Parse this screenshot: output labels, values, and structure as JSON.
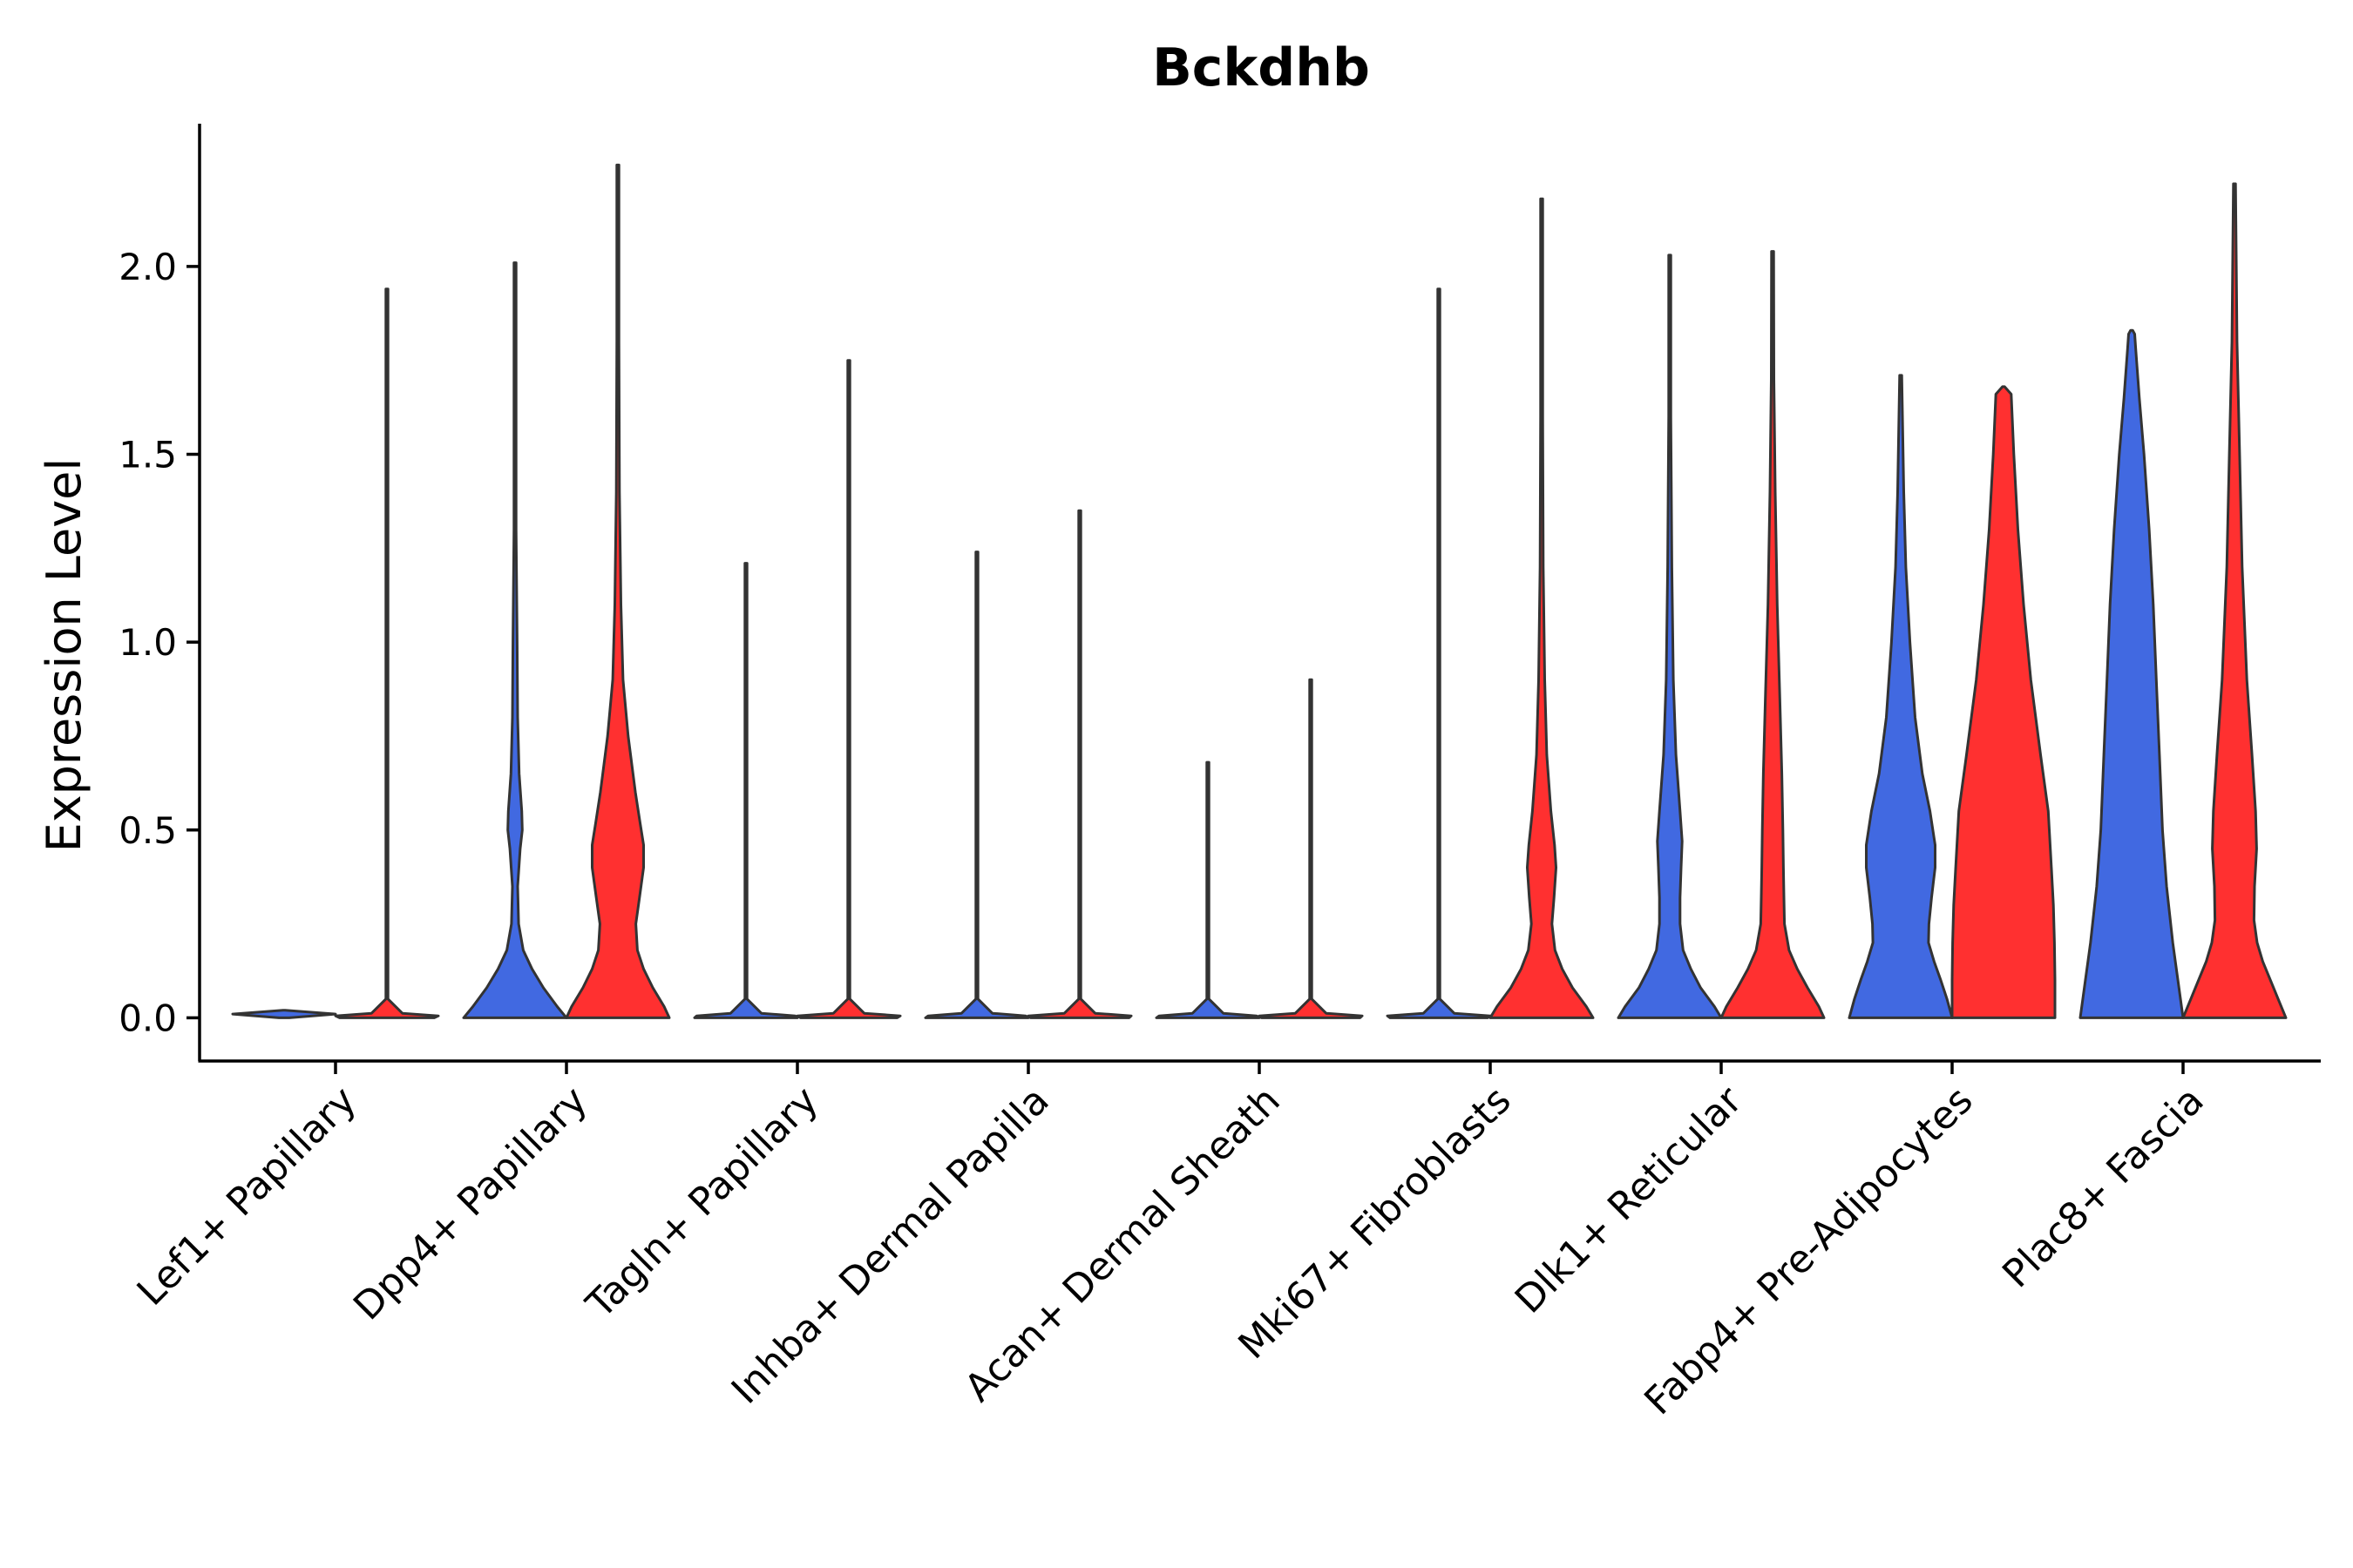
{
  "chart_data": {
    "type": "violin",
    "title": "Bckdhb",
    "ylabel": "Expression Level",
    "xlabel": "",
    "ylim": [
      -0.115,
      2.38
    ],
    "yticks": [
      "0.0",
      "0.5",
      "1.0",
      "1.5",
      "2.0"
    ],
    "ytick_values": [
      0.0,
      0.5,
      1.0,
      1.5,
      2.0
    ],
    "grid": false,
    "legend": "none",
    "colors": {
      "group_a": "#4169e1",
      "group_b": "#ff3030",
      "outline": "#333333"
    },
    "categories": [
      "Lef1+ Papillary",
      "Dpp4+ Papillary",
      "Tagln+ Papillary",
      "Inhba+ Dermal Papilla",
      "Acan+ Dermal Sheath",
      "Mki67+ Fibroblasts",
      "Dlk1+ Reticular",
      "Fabp4+ Pre-Adipocytes",
      "Plac8+ Fascia"
    ],
    "violins": [
      {
        "category": 0,
        "group": "a",
        "color": "#4169e1",
        "max": 0.0,
        "profile": [
          [
            0,
            0.1
          ],
          [
            0.01,
            1
          ],
          [
            0.02,
            0
          ]
        ]
      },
      {
        "category": 0,
        "group": "b",
        "color": "#ff3030",
        "max": 1.94,
        "profile": [
          [
            0,
            0.92
          ],
          [
            0.005,
            1
          ],
          [
            0.012,
            0.3
          ],
          [
            0.05,
            0.01
          ],
          [
            1.94,
            0.008
          ]
        ]
      },
      {
        "category": 1,
        "group": "a",
        "color": "#4169e1",
        "max": 2.01,
        "profile": [
          [
            0,
            1
          ],
          [
            0.03,
            0.82
          ],
          [
            0.08,
            0.55
          ],
          [
            0.13,
            0.33
          ],
          [
            0.18,
            0.16
          ],
          [
            0.25,
            0.07
          ],
          [
            0.35,
            0.05
          ],
          [
            0.45,
            0.1
          ],
          [
            0.5,
            0.14
          ],
          [
            0.55,
            0.13
          ],
          [
            0.65,
            0.08
          ],
          [
            0.8,
            0.05
          ],
          [
            1.0,
            0.04
          ],
          [
            1.3,
            0.02
          ],
          [
            1.6,
            0.012
          ],
          [
            2.01,
            0.008
          ]
        ]
      },
      {
        "category": 1,
        "group": "b",
        "color": "#ff3030",
        "max": 2.27,
        "profile": [
          [
            0,
            1
          ],
          [
            0.03,
            0.9
          ],
          [
            0.08,
            0.68
          ],
          [
            0.13,
            0.5
          ],
          [
            0.18,
            0.38
          ],
          [
            0.25,
            0.35
          ],
          [
            0.32,
            0.42
          ],
          [
            0.4,
            0.5
          ],
          [
            0.46,
            0.5
          ],
          [
            0.52,
            0.43
          ],
          [
            0.6,
            0.34
          ],
          [
            0.75,
            0.2
          ],
          [
            0.9,
            0.1
          ],
          [
            1.1,
            0.06
          ],
          [
            1.4,
            0.03
          ],
          [
            1.8,
            0.015
          ],
          [
            2.27,
            0.008
          ]
        ]
      },
      {
        "category": 2,
        "group": "a",
        "color": "#4169e1",
        "max": 1.21,
        "profile": [
          [
            0,
            1
          ],
          [
            0.005,
            0.96
          ],
          [
            0.012,
            0.3
          ],
          [
            0.05,
            0.02
          ],
          [
            1.21,
            0.008
          ]
        ]
      },
      {
        "category": 2,
        "group": "b",
        "color": "#ff3030",
        "max": 1.75,
        "profile": [
          [
            0,
            0.94
          ],
          [
            0.005,
            1
          ],
          [
            0.012,
            0.3
          ],
          [
            0.05,
            0.02
          ],
          [
            1.75,
            0.008
          ]
        ]
      },
      {
        "category": 3,
        "group": "a",
        "color": "#4169e1",
        "max": 1.24,
        "profile": [
          [
            0,
            1
          ],
          [
            0.005,
            0.95
          ],
          [
            0.012,
            0.3
          ],
          [
            0.05,
            0.02
          ],
          [
            1.24,
            0.008
          ]
        ]
      },
      {
        "category": 3,
        "group": "b",
        "color": "#ff3030",
        "max": 1.35,
        "profile": [
          [
            0,
            0.96
          ],
          [
            0.005,
            1
          ],
          [
            0.012,
            0.3
          ],
          [
            0.05,
            0.02
          ],
          [
            1.35,
            0.008
          ]
        ]
      },
      {
        "category": 4,
        "group": "a",
        "color": "#4169e1",
        "max": 0.68,
        "profile": [
          [
            0,
            1
          ],
          [
            0.005,
            0.95
          ],
          [
            0.012,
            0.3
          ],
          [
            0.05,
            0.02
          ],
          [
            0.68,
            0.008
          ]
        ]
      },
      {
        "category": 4,
        "group": "b",
        "color": "#ff3030",
        "max": 0.9,
        "profile": [
          [
            0,
            0.96
          ],
          [
            0.005,
            1
          ],
          [
            0.012,
            0.3
          ],
          [
            0.05,
            0.02
          ],
          [
            0.9,
            0.008
          ]
        ]
      },
      {
        "category": 5,
        "group": "a",
        "color": "#4169e1",
        "max": 1.94,
        "profile": [
          [
            0,
            0.95
          ],
          [
            0.005,
            1
          ],
          [
            0.012,
            0.3
          ],
          [
            0.05,
            0.02
          ],
          [
            1.94,
            0.008
          ]
        ]
      },
      {
        "category": 5,
        "group": "b",
        "color": "#ff3030",
        "max": 2.18,
        "profile": [
          [
            0,
            1
          ],
          [
            0.03,
            0.87
          ],
          [
            0.08,
            0.6
          ],
          [
            0.13,
            0.4
          ],
          [
            0.18,
            0.26
          ],
          [
            0.25,
            0.2
          ],
          [
            0.32,
            0.24
          ],
          [
            0.4,
            0.28
          ],
          [
            0.46,
            0.25
          ],
          [
            0.55,
            0.18
          ],
          [
            0.7,
            0.1
          ],
          [
            0.9,
            0.06
          ],
          [
            1.2,
            0.03
          ],
          [
            1.6,
            0.015
          ],
          [
            2.18,
            0.008
          ]
        ]
      },
      {
        "category": 6,
        "group": "a",
        "color": "#4169e1",
        "max": 2.03,
        "profile": [
          [
            0,
            1
          ],
          [
            0.03,
            0.87
          ],
          [
            0.08,
            0.6
          ],
          [
            0.13,
            0.41
          ],
          [
            0.18,
            0.26
          ],
          [
            0.25,
            0.2
          ],
          [
            0.32,
            0.2
          ],
          [
            0.4,
            0.22
          ],
          [
            0.47,
            0.24
          ],
          [
            0.55,
            0.2
          ],
          [
            0.7,
            0.12
          ],
          [
            0.9,
            0.07
          ],
          [
            1.2,
            0.04
          ],
          [
            1.6,
            0.015
          ],
          [
            2.03,
            0.008
          ]
        ]
      },
      {
        "category": 6,
        "group": "b",
        "color": "#ff3030",
        "max": 2.04,
        "profile": [
          [
            0,
            1
          ],
          [
            0.03,
            0.9
          ],
          [
            0.08,
            0.68
          ],
          [
            0.13,
            0.48
          ],
          [
            0.18,
            0.32
          ],
          [
            0.25,
            0.23
          ],
          [
            0.32,
            0.22
          ],
          [
            0.4,
            0.21
          ],
          [
            0.5,
            0.2
          ],
          [
            0.65,
            0.18
          ],
          [
            0.85,
            0.14
          ],
          [
            1.1,
            0.09
          ],
          [
            1.4,
            0.05
          ],
          [
            1.7,
            0.025
          ],
          [
            2.04,
            0.008
          ]
        ]
      },
      {
        "category": 7,
        "group": "a",
        "color": "#4169e1",
        "max": 1.71,
        "profile": [
          [
            0,
            1
          ],
          [
            0.05,
            0.9
          ],
          [
            0.1,
            0.78
          ],
          [
            0.15,
            0.65
          ],
          [
            0.2,
            0.54
          ],
          [
            0.25,
            0.55
          ],
          [
            0.32,
            0.6
          ],
          [
            0.4,
            0.67
          ],
          [
            0.46,
            0.67
          ],
          [
            0.55,
            0.57
          ],
          [
            0.65,
            0.42
          ],
          [
            0.8,
            0.28
          ],
          [
            1.0,
            0.18
          ],
          [
            1.2,
            0.1
          ],
          [
            1.4,
            0.06
          ],
          [
            1.71,
            0.008
          ]
        ]
      },
      {
        "category": 7,
        "group": "b",
        "color": "#ff3030",
        "max": 1.68,
        "profile": [
          [
            0,
            1
          ],
          [
            0.1,
            1.0
          ],
          [
            0.2,
            0.99
          ],
          [
            0.3,
            0.97
          ],
          [
            0.4,
            0.93
          ],
          [
            0.55,
            0.87
          ],
          [
            0.7,
            0.72
          ],
          [
            0.9,
            0.53
          ],
          [
            1.1,
            0.39
          ],
          [
            1.3,
            0.28
          ],
          [
            1.5,
            0.2
          ],
          [
            1.66,
            0.15
          ],
          [
            1.68,
            0.0
          ]
        ]
      },
      {
        "category": 8,
        "group": "a",
        "color": "#4169e1",
        "max": 1.83,
        "profile": [
          [
            0,
            1
          ],
          [
            0.1,
            0.9
          ],
          [
            0.2,
            0.8
          ],
          [
            0.35,
            0.68
          ],
          [
            0.5,
            0.6
          ],
          [
            0.7,
            0.54
          ],
          [
            0.9,
            0.48
          ],
          [
            1.1,
            0.42
          ],
          [
            1.3,
            0.34
          ],
          [
            1.5,
            0.24
          ],
          [
            1.65,
            0.15
          ],
          [
            1.78,
            0.08
          ],
          [
            1.82,
            0.06
          ],
          [
            1.83,
            0.0
          ]
        ]
      },
      {
        "category": 8,
        "group": "b",
        "color": "#ff3030",
        "max": 2.22,
        "profile": [
          [
            0,
            1
          ],
          [
            0.04,
            0.88
          ],
          [
            0.1,
            0.7
          ],
          [
            0.15,
            0.55
          ],
          [
            0.2,
            0.44
          ],
          [
            0.26,
            0.38
          ],
          [
            0.35,
            0.39
          ],
          [
            0.45,
            0.43
          ],
          [
            0.55,
            0.41
          ],
          [
            0.7,
            0.34
          ],
          [
            0.9,
            0.24
          ],
          [
            1.2,
            0.15
          ],
          [
            1.5,
            0.1
          ],
          [
            1.8,
            0.05
          ],
          [
            2.22,
            0.008
          ]
        ]
      }
    ]
  }
}
